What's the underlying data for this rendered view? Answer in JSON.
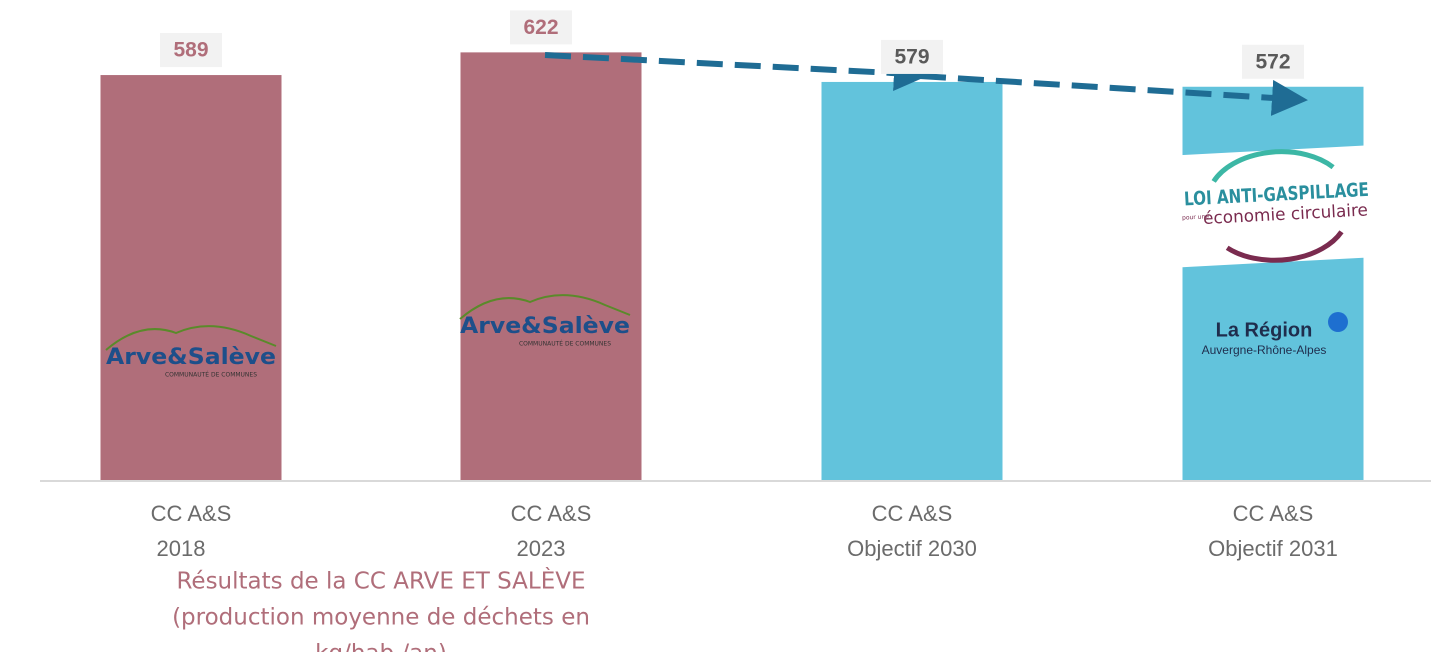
{
  "chart_data": {
    "type": "bar",
    "categories": [
      [
        "CC A&S",
        "2018"
      ],
      [
        "CC A&S",
        "2023"
      ],
      [
        "CC A&S",
        "Objectif 2030"
      ],
      [
        "CC A&S",
        "Objectif 2031"
      ]
    ],
    "values": [
      589,
      622,
      579,
      572
    ],
    "colors": [
      "#b06e7a",
      "#b06e7a",
      "#62c3dc",
      "#62c3dc"
    ],
    "label_colors": [
      "#b06e7a",
      "#b06e7a",
      "#5a5a5a",
      "#5a5a5a"
    ],
    "ylim": [
      0,
      640
    ],
    "grid": false,
    "logos": {
      "arve_salve": [
        "Arve&Salève",
        "COMMUNAUTÉ DE COMMUNES"
      ],
      "loi": [
        "LOI ANTI-GASPILLAGE",
        "pour une",
        "économie circulaire"
      ],
      "region": [
        "La Région",
        "Auvergne-Rhône-Alpes"
      ]
    },
    "caption": [
      "Résultats de la CC ARVE ET SALÈVE",
      "(production moyenne de déchets en",
      "kg/hab./an)"
    ]
  }
}
